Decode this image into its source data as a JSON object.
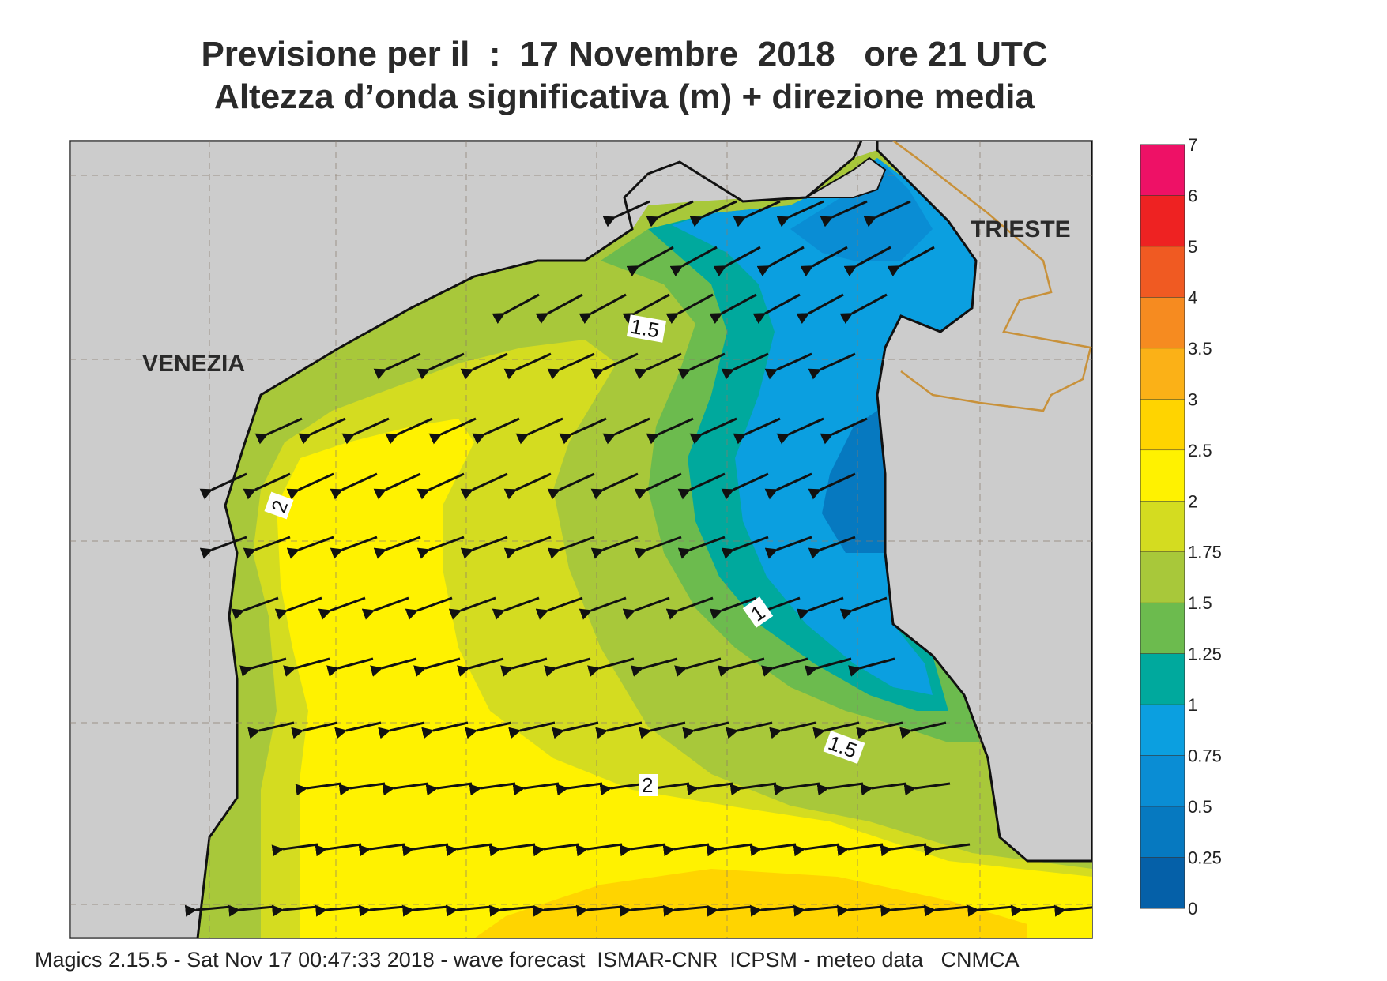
{
  "title": {
    "line1": "Previsione per il  :  17 Novembre  2018   ore 21 UTC",
    "line2": "Altezza d’onda significativa (m) + direzione media"
  },
  "map": {
    "cities": [
      {
        "name": "VENEZIA"
      },
      {
        "name": "TRIESTE"
      }
    ],
    "contour_labels": [
      "1.5",
      "2",
      "1",
      "1.5",
      "2"
    ],
    "land_color": "#cccccc",
    "grid": true
  },
  "colorbar": {
    "levels": [
      {
        "label": "7",
        "color": null
      },
      {
        "label": "6",
        "color": "#ee1166"
      },
      {
        "label": "5",
        "color": "#ee2222"
      },
      {
        "label": "4",
        "color": "#f05a22"
      },
      {
        "label": "3.5",
        "color": "#f68b20"
      },
      {
        "label": "3",
        "color": "#fbb117"
      },
      {
        "label": "2.5",
        "color": "#ffd400"
      },
      {
        "label": "2",
        "color": "#fff200"
      },
      {
        "label": "1.75",
        "color": "#d4dc20"
      },
      {
        "label": "1.5",
        "color": "#a8c83a"
      },
      {
        "label": "1.25",
        "color": "#6cbb4e"
      },
      {
        "label": "1",
        "color": "#00a99d"
      },
      {
        "label": "0.75",
        "color": "#0b9fe0"
      },
      {
        "label": "0.5",
        "color": "#0a8dd4"
      },
      {
        "label": "0.25",
        "color": "#0679c0"
      },
      {
        "label": "0",
        "color": "#0560a8"
      }
    ]
  },
  "footer": "Magics 2.15.5 - Sat Nov 17 00:47:33 2018 - wave forecast  ISMAR-CNR  ICPSM - meteo data   CNMCA"
}
